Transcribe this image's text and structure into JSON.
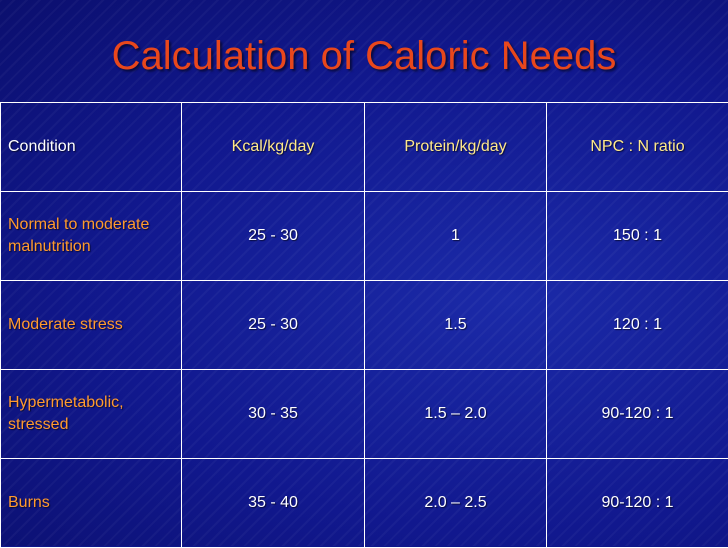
{
  "slide": {
    "title": "Calculation of Caloric Needs"
  },
  "table": {
    "headers": [
      "Condition",
      "Kcal/kg/day",
      "Protein/kg/day",
      "NPC : N ratio"
    ],
    "rows": [
      [
        "Normal to moderate malnutrition",
        "25 - 30",
        "1",
        "150 : 1"
      ],
      [
        "Moderate stress",
        "25 - 30",
        "1.5",
        "120 : 1"
      ],
      [
        "Hypermetabolic, stressed",
        "30 - 35",
        "1.5 – 2.0",
        "90-120 : 1"
      ],
      [
        "Burns",
        "35 - 40",
        "2.0 – 2.5",
        "90-120 : 1"
      ]
    ]
  },
  "colors": {
    "background": "#10168a",
    "title": "#e8471c",
    "condition_text": "#ff9a2e",
    "header_text": "#ffe98a",
    "value_text": "#ffffff",
    "grid_lines": "#ffffff"
  }
}
